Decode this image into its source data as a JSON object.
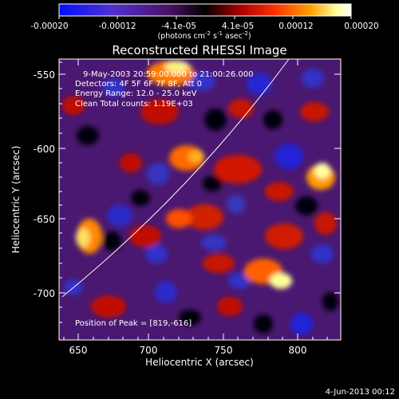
{
  "colorbar": {
    "ticks": [
      "-0.00020",
      "-0.00012",
      "-4.1e-05",
      "4.1e-05",
      "0.00012",
      "0.00020"
    ],
    "unit_main": "(photons cm",
    "unit_exp1": "-2",
    "unit_mid": " s",
    "unit_exp2": "-1",
    "unit_end": " asec",
    "unit_exp3": "-2",
    "unit_close": ")",
    "colors": [
      "#0000ff",
      "#7a4bd0",
      "#5f2a7a",
      "#000000",
      "#8a0000",
      "#ff2a00",
      "#ff9a00",
      "#ffff99",
      "#ffffff"
    ]
  },
  "plot": {
    "title": "Reconstructed RHESSI Image",
    "info_lines": [
      "9-May-2003 20:59:00.000 to 21:00:26.000",
      "Detectors: 4F 5F 6F 7F 8F, Att 0",
      "Energy Range: 12.0 - 25.0 keV",
      "Clean     Total counts: 1.19E+03"
    ],
    "peak_label": "Position of Peak = [819,-616]",
    "x_ticks": [
      "650",
      "700",
      "750",
      "800"
    ],
    "y_ticks": [
      "-550",
      "-600",
      "-650",
      "-700"
    ],
    "x_label": "Heliocentric X (arcsec)",
    "y_label": "Heliocentric Y (arcsec)",
    "footer_date": "4-Jun-2013 00:12"
  }
}
